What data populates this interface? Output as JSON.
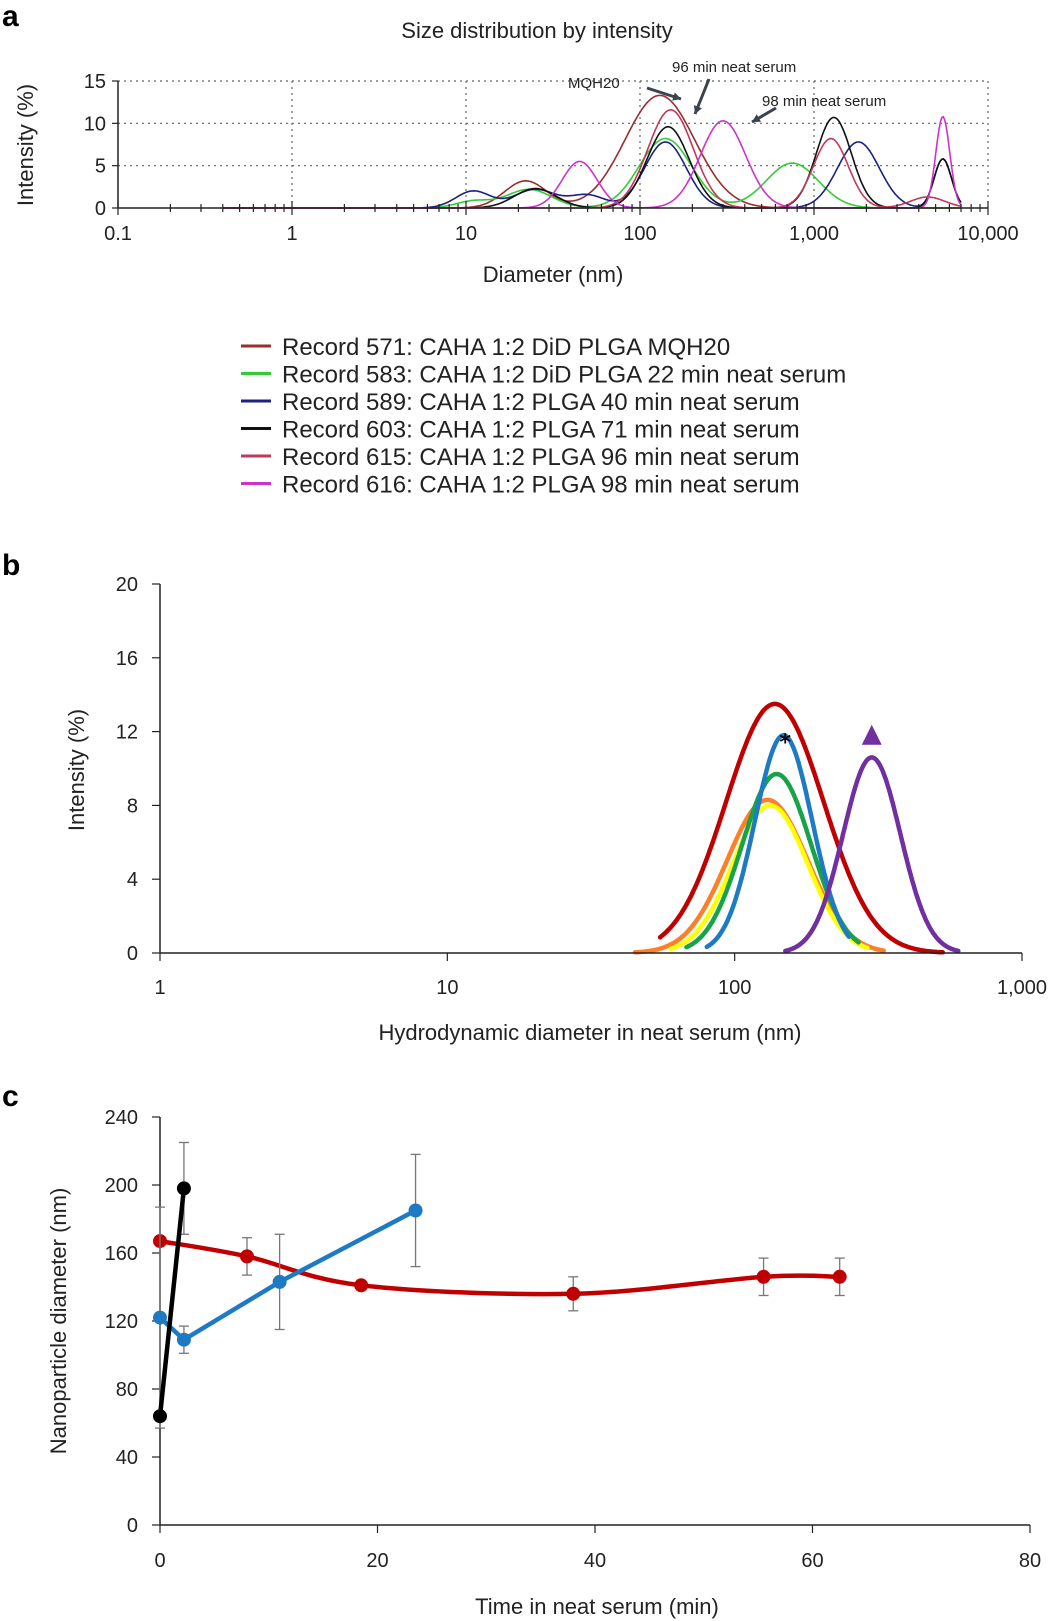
{
  "chart_data": [
    {
      "panel": "a",
      "type": "line",
      "title": "Size distribution by intensity",
      "xlabel": "Diameter (nm)",
      "ylabel": "Intensity (%)",
      "xscale": "log",
      "xlim": [
        0.1,
        10000
      ],
      "ylim": [
        0,
        15
      ],
      "xticks": [
        0.1,
        1,
        10,
        100,
        1000,
        10000
      ],
      "xtick_labels": [
        "0.1",
        "1",
        "10",
        "100",
        "1,000",
        "10,000"
      ],
      "yticks": [
        0,
        5,
        10,
        15
      ],
      "ytick_labels": [
        "0",
        "5",
        "10",
        "15"
      ],
      "grid": "dotted",
      "legend_position": "below",
      "series": [
        {
          "name": "Record 571: CAHA 1:2 DiD PLGA MQH20",
          "color": "#9b2d2d",
          "peaks": [
            {
              "center": 130,
              "height": 13.3,
              "width": 0.2
            },
            {
              "center": 22,
              "height": 3.2,
              "width": 0.12
            }
          ]
        },
        {
          "name": "Record 583: CAHA 1:2 DiD PLGA 22 min neat serum",
          "color": "#33cc33",
          "peaks": [
            {
              "center": 140,
              "height": 8.2,
              "width": 0.15
            },
            {
              "center": 750,
              "height": 5.3,
              "width": 0.15
            },
            {
              "center": 23,
              "height": 2.2,
              "width": 0.13
            },
            {
              "center": 11,
              "height": 0.8,
              "width": 0.1
            }
          ]
        },
        {
          "name": "Record 589: CAHA 1:2 PLGA 40 min neat serum",
          "color": "#1a237e",
          "peaks": [
            {
              "center": 140,
              "height": 7.8,
              "width": 0.12
            },
            {
              "center": 1800,
              "height": 7.8,
              "width": 0.12
            },
            {
              "center": 11,
              "height": 2.0,
              "width": 0.1
            },
            {
              "center": 25,
              "height": 2.2,
              "width": 0.12
            },
            {
              "center": 50,
              "height": 1.5,
              "width": 0.1
            },
            {
              "center": 5500,
              "height": 5.8,
              "width": 0.05
            }
          ]
        },
        {
          "name": "Record 603: CAHA 1:2 PLGA 71 min neat serum",
          "color": "#111111",
          "peaks": [
            {
              "center": 145,
              "height": 9.6,
              "width": 0.12
            },
            {
              "center": 1300,
              "height": 10.7,
              "width": 0.1
            },
            {
              "center": 25,
              "height": 2.3,
              "width": 0.12
            },
            {
              "center": 5500,
              "height": 5.8,
              "width": 0.05
            }
          ]
        },
        {
          "name": "Record 615: CAHA 1:2 PLGA 96 min neat serum",
          "color": "#c0395a",
          "peaks": [
            {
              "center": 150,
              "height": 11.6,
              "width": 0.13
            },
            {
              "center": 1250,
              "height": 8.2,
              "width": 0.1
            },
            {
              "center": 4500,
              "height": 1.3,
              "width": 0.1
            }
          ]
        },
        {
          "name": "Record 616: CAHA 1:2 PLGA 98 min neat serum",
          "color": "#cc33cc",
          "peaks": [
            {
              "center": 300,
              "height": 10.3,
              "width": 0.13
            },
            {
              "center": 45,
              "height": 5.5,
              "width": 0.1
            },
            {
              "center": 5500,
              "height": 10.8,
              "width": 0.04
            }
          ]
        }
      ],
      "annotations": [
        {
          "text": "MQH20",
          "x": 130,
          "y": 13.3
        },
        {
          "text": "96 min neat serum",
          "x": 150,
          "y": 11.6
        },
        {
          "text": "98 min neat serum",
          "x": 300,
          "y": 10.3
        }
      ]
    },
    {
      "panel": "b",
      "type": "line",
      "title": "",
      "xlabel": "Hydrodynamic diameter in neat serum (nm)",
      "ylabel": "Intensity (%)",
      "xscale": "log",
      "xlim": [
        1,
        1000
      ],
      "ylim": [
        0,
        20
      ],
      "xticks": [
        1,
        10,
        100,
        1000
      ],
      "xtick_labels": [
        "1",
        "10",
        "100",
        "1,000"
      ],
      "yticks": [
        0,
        4,
        8,
        12,
        16,
        20
      ],
      "ytick_labels": [
        "0",
        "4",
        "8",
        "12",
        "16",
        "20"
      ],
      "series": [
        {
          "name": "red",
          "color": "#c00000",
          "center": 138,
          "height": 13.5,
          "width": 0.17,
          "range": [
            55,
            530
          ]
        },
        {
          "name": "orange",
          "color": "#ff7f27",
          "center": 130,
          "height": 8.3,
          "width": 0.14,
          "range": [
            45,
            330
          ]
        },
        {
          "name": "yellow",
          "color": "#ffff00",
          "center": 133,
          "height": 8.0,
          "width": 0.13,
          "range": [
            60,
            290
          ]
        },
        {
          "name": "green",
          "color": "#17a34a",
          "center": 140,
          "height": 9.7,
          "width": 0.12,
          "range": [
            68,
            270
          ]
        },
        {
          "name": "blue",
          "color": "#1f7ac4",
          "center": 148,
          "height": 11.8,
          "width": 0.1,
          "range": [
            80,
            250
          ]
        },
        {
          "name": "purple",
          "color": "#7030a0",
          "center": 300,
          "height": 10.6,
          "width": 0.1,
          "range": [
            150,
            600
          ]
        }
      ],
      "markers": [
        {
          "symbol": "*",
          "x": 150,
          "y": 11.8,
          "color": "#000000"
        },
        {
          "symbol": "▲",
          "x": 300,
          "y": 11.9,
          "color": "#7030a0"
        }
      ]
    },
    {
      "panel": "c",
      "type": "line",
      "title": "",
      "xlabel": "Time in neat serum (min)",
      "ylabel": "Nanoparticle diameter (nm)",
      "xlim": [
        0,
        80
      ],
      "ylim": [
        0,
        240
      ],
      "xticks": [
        0,
        20,
        40,
        60,
        80
      ],
      "xtick_labels": [
        "0",
        "20",
        "40",
        "60",
        "80"
      ],
      "yticks": [
        0,
        40,
        80,
        120,
        160,
        200,
        240
      ],
      "ytick_labels": [
        "0",
        "40",
        "80",
        "120",
        "160",
        "200",
        "240"
      ],
      "series": [
        {
          "name": "black",
          "color": "#000000",
          "x": [
            0,
            2.2
          ],
          "y": [
            64,
            198
          ],
          "err": [
            0,
            27
          ]
        },
        {
          "name": "blue",
          "color": "#1f7ac4",
          "x": [
            0,
            2.2,
            11,
            23.5
          ],
          "y": [
            122,
            109,
            143,
            185
          ],
          "err": [
            65,
            8,
            28,
            33
          ]
        },
        {
          "name": "red",
          "color": "#c00000",
          "x": [
            0,
            8,
            18.5,
            38,
            55.5,
            62.5
          ],
          "y": [
            167,
            158,
            141,
            136,
            146,
            146
          ],
          "err": [
            0,
            11,
            0,
            10,
            11,
            11
          ]
        }
      ]
    }
  ],
  "panel_labels": {
    "a": "a",
    "b": "b",
    "c": "c"
  }
}
